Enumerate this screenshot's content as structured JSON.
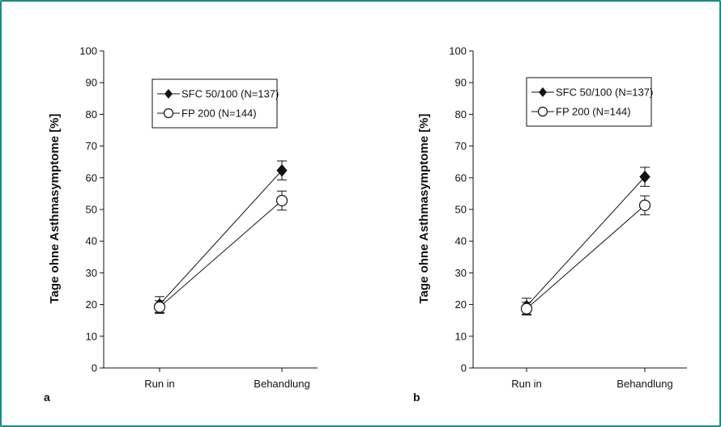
{
  "frame": {
    "border_color": "#1b8a86"
  },
  "chart_data": [
    {
      "type": "line",
      "panel_label": "a",
      "xlabel": "",
      "ylabel": "Tage ohne Asthmasymptome [%]",
      "categories": [
        "Run in",
        "Behandlung"
      ],
      "ylim": [
        0,
        100
      ],
      "yticks": [
        0,
        10,
        20,
        30,
        40,
        50,
        60,
        70,
        80,
        90,
        100
      ],
      "legend_position": "top-center",
      "series": [
        {
          "name": "SFC 50/100 (N=137)",
          "marker": "filled-diamond",
          "values": [
            20,
            62.3
          ],
          "error": [
            2.5,
            3
          ]
        },
        {
          "name": "FP 200 (N=144)",
          "marker": "open-circle",
          "values": [
            19.2,
            52.8
          ],
          "error": [
            2,
            3
          ]
        }
      ]
    },
    {
      "type": "line",
      "panel_label": "b",
      "xlabel": "",
      "ylabel": "Tage ohne Asthmasymptome [%]",
      "categories": [
        "Run in",
        "Behandlung"
      ],
      "ylim": [
        0,
        100
      ],
      "yticks": [
        0,
        10,
        20,
        30,
        40,
        50,
        60,
        70,
        80,
        90,
        100
      ],
      "legend_position": "top-center",
      "series": [
        {
          "name": "SFC 50/100 (N=137)",
          "marker": "filled-diamond",
          "values": [
            19.5,
            60.3
          ],
          "error": [
            2.5,
            3
          ]
        },
        {
          "name": "FP 200 (N=144)",
          "marker": "open-circle",
          "values": [
            18.7,
            51.3
          ],
          "error": [
            2,
            3
          ]
        }
      ]
    }
  ]
}
